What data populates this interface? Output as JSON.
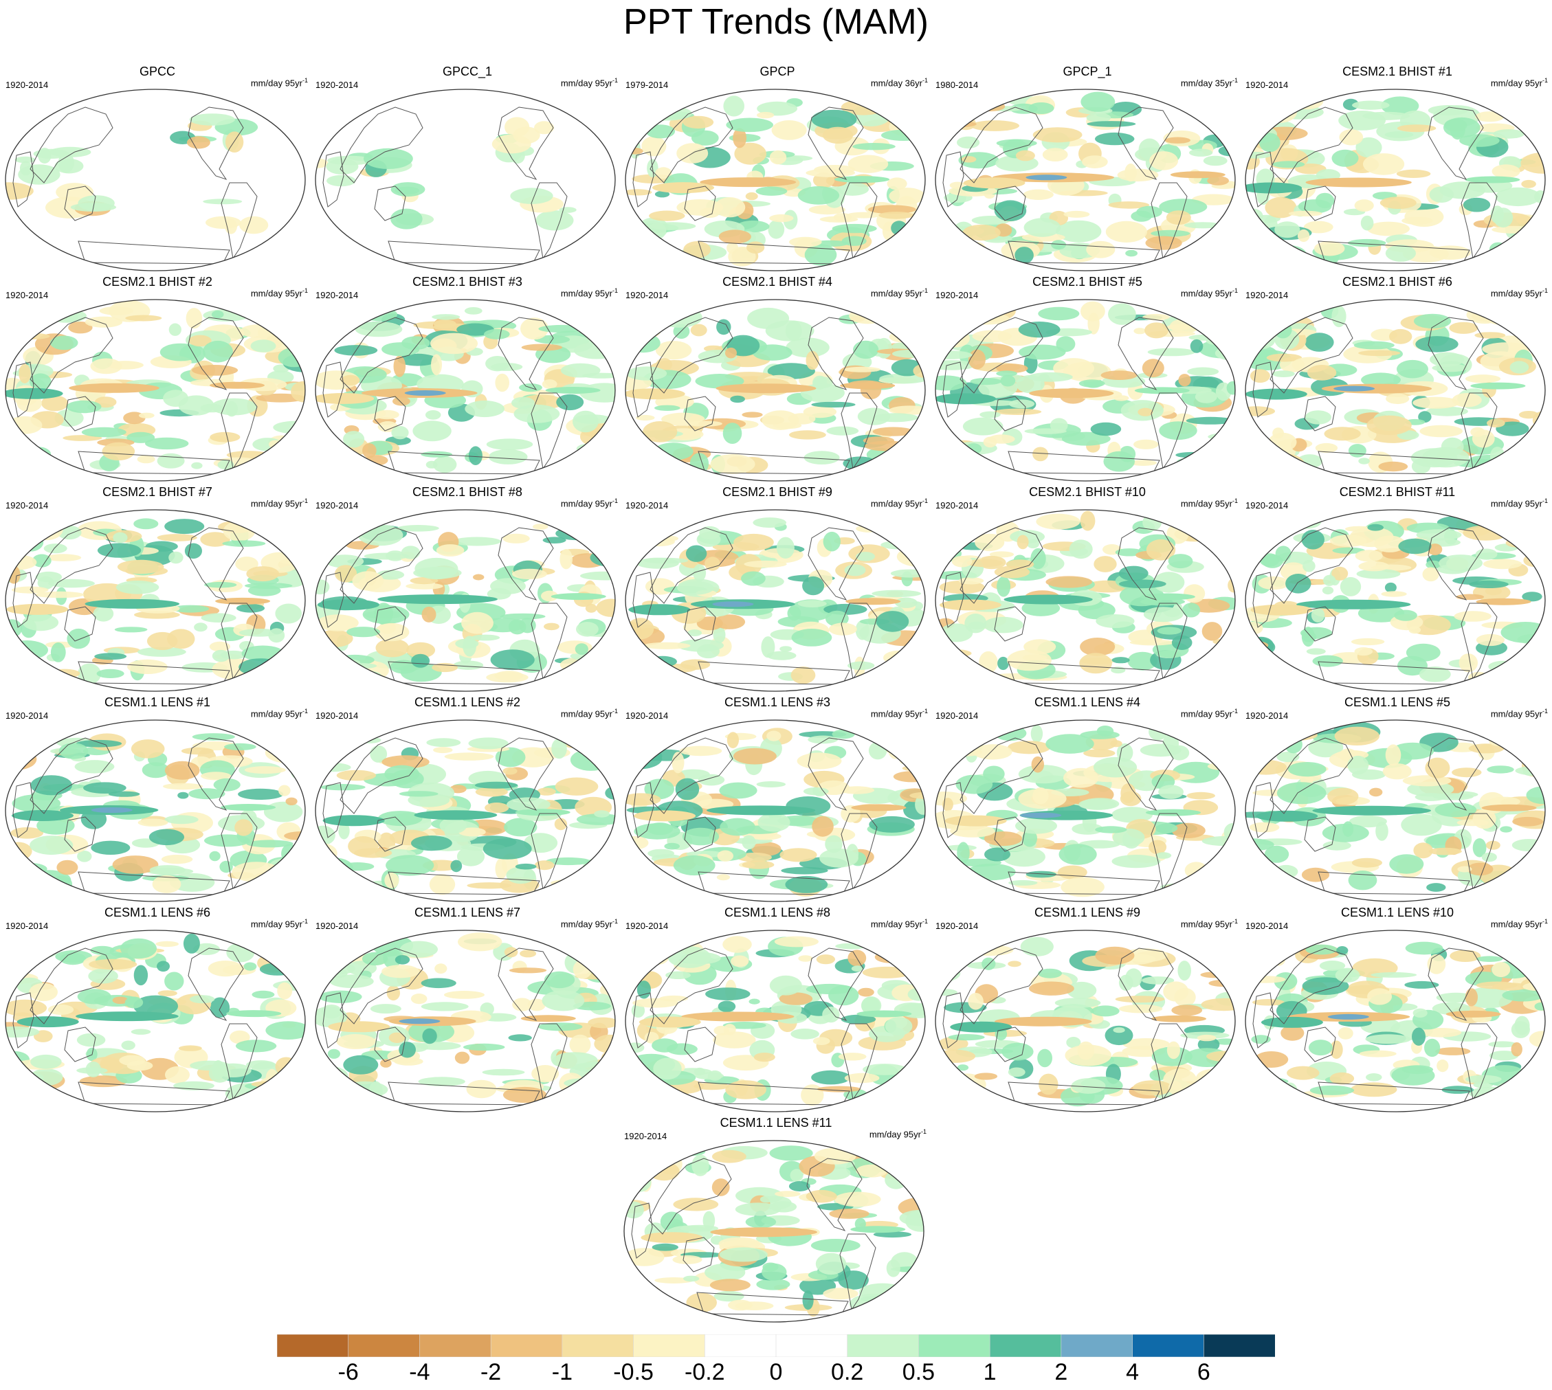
{
  "title": "PPT Trends (MAM)",
  "chart_data": {
    "type": "map-grid",
    "title": "PPT Trends (MAM)",
    "projection": "elliptical global map (Pacific-centered)",
    "panels": [
      {
        "name": "GPCC",
        "period": "1920-2014",
        "units": "mm/day 95yr",
        "units_exp": "-1"
      },
      {
        "name": "GPCC_1",
        "period": "1920-2014",
        "units": "mm/day 95yr",
        "units_exp": "-1"
      },
      {
        "name": "GPCP",
        "period": "1979-2014",
        "units": "mm/day 36yr",
        "units_exp": "-1"
      },
      {
        "name": "GPCP_1",
        "period": "1980-2014",
        "units": "mm/day 35yr",
        "units_exp": "-1"
      },
      {
        "name": "CESM2.1 BHIST #1",
        "period": "1920-2014",
        "units": "mm/day 95yr",
        "units_exp": "-1"
      },
      {
        "name": "CESM2.1 BHIST #2",
        "period": "1920-2014",
        "units": "mm/day 95yr",
        "units_exp": "-1"
      },
      {
        "name": "CESM2.1 BHIST #3",
        "period": "1920-2014",
        "units": "mm/day 95yr",
        "units_exp": "-1"
      },
      {
        "name": "CESM2.1 BHIST #4",
        "period": "1920-2014",
        "units": "mm/day 95yr",
        "units_exp": "-1"
      },
      {
        "name": "CESM2.1 BHIST #5",
        "period": "1920-2014",
        "units": "mm/day 95yr",
        "units_exp": "-1"
      },
      {
        "name": "CESM2.1 BHIST #6",
        "period": "1920-2014",
        "units": "mm/day 95yr",
        "units_exp": "-1"
      },
      {
        "name": "CESM2.1 BHIST #7",
        "period": "1920-2014",
        "units": "mm/day 95yr",
        "units_exp": "-1"
      },
      {
        "name": "CESM2.1 BHIST #8",
        "period": "1920-2014",
        "units": "mm/day 95yr",
        "units_exp": "-1"
      },
      {
        "name": "CESM2.1 BHIST #9",
        "period": "1920-2014",
        "units": "mm/day 95yr",
        "units_exp": "-1"
      },
      {
        "name": "CESM2.1 BHIST #10",
        "period": "1920-2014",
        "units": "mm/day 95yr",
        "units_exp": "-1"
      },
      {
        "name": "CESM2.1 BHIST #11",
        "period": "1920-2014",
        "units": "mm/day 95yr",
        "units_exp": "-1"
      },
      {
        "name": "CESM1.1 LENS #1",
        "period": "1920-2014",
        "units": "mm/day 95yr",
        "units_exp": "-1"
      },
      {
        "name": "CESM1.1 LENS #2",
        "period": "1920-2014",
        "units": "mm/day 95yr",
        "units_exp": "-1"
      },
      {
        "name": "CESM1.1 LENS #3",
        "period": "1920-2014",
        "units": "mm/day 95yr",
        "units_exp": "-1"
      },
      {
        "name": "CESM1.1 LENS #4",
        "period": "1920-2014",
        "units": "mm/day 95yr",
        "units_exp": "-1"
      },
      {
        "name": "CESM1.1 LENS #5",
        "period": "1920-2014",
        "units": "mm/day 95yr",
        "units_exp": "-1"
      },
      {
        "name": "CESM1.1 LENS #6",
        "period": "1920-2014",
        "units": "mm/day 95yr",
        "units_exp": "-1"
      },
      {
        "name": "CESM1.1 LENS #7",
        "period": "1920-2014",
        "units": "mm/day 95yr",
        "units_exp": "-1"
      },
      {
        "name": "CESM1.1 LENS #8",
        "period": "1920-2014",
        "units": "mm/day 95yr",
        "units_exp": "-1"
      },
      {
        "name": "CESM1.1 LENS #9",
        "period": "1920-2014",
        "units": "mm/day 95yr",
        "units_exp": "-1"
      },
      {
        "name": "CESM1.1 LENS #10",
        "period": "1920-2014",
        "units": "mm/day 95yr",
        "units_exp": "-1"
      },
      {
        "name": "CESM1.1 LENS #11",
        "period": "1920-2014",
        "units": "mm/day 95yr",
        "units_exp": "-1"
      }
    ],
    "colorbar": {
      "levels": [
        "-6",
        "-4",
        "-2",
        "-1",
        "-0.5",
        "-0.2",
        "0",
        "0.2",
        "0.5",
        "1",
        "2",
        "4",
        "6"
      ],
      "colors": [
        "#b5692a",
        "#cc8640",
        "#dda35f",
        "#efc27f",
        "#f5dfa0",
        "#fcf3c4",
        "#ffffff",
        "#ffffff",
        "#c9f5cc",
        "#9debb8",
        "#55be9c",
        "#6fa9c8",
        "#0f6aa9",
        "#093a57"
      ]
    }
  }
}
